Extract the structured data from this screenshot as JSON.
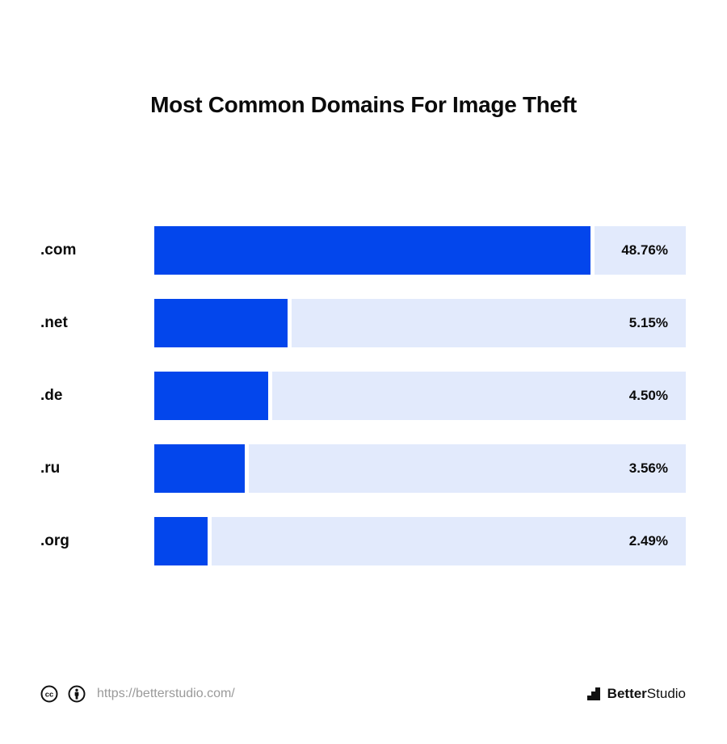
{
  "title": "Most Common Domains For Image Theft",
  "chart_data": {
    "type": "bar",
    "orientation": "horizontal",
    "title": "Most Common Domains For Image Theft",
    "categories": [
      ".com",
      ".net",
      ".de",
      ".ru",
      ".org"
    ],
    "values": [
      48.76,
      5.15,
      4.5,
      3.56,
      2.49
    ],
    "value_labels": [
      "48.76%",
      "5.15%",
      "4.50%",
      "3.56%",
      "2.49%"
    ],
    "unit": "%",
    "bar_fill_fraction": [
      0.82,
      0.25,
      0.215,
      0.17,
      0.1
    ],
    "xlabel": "",
    "ylabel": "",
    "grid": false,
    "legend": "none",
    "colors": {
      "bar": "#0346ec",
      "track": "#e2eafc"
    }
  },
  "footer": {
    "url": "https://betterstudio.com/",
    "icons": [
      "creative-commons-icon",
      "attribution-icon"
    ]
  },
  "brand": {
    "name_strong": "Better",
    "name_rest": "Studio",
    "logo_icon": "stairs-logo-icon"
  }
}
